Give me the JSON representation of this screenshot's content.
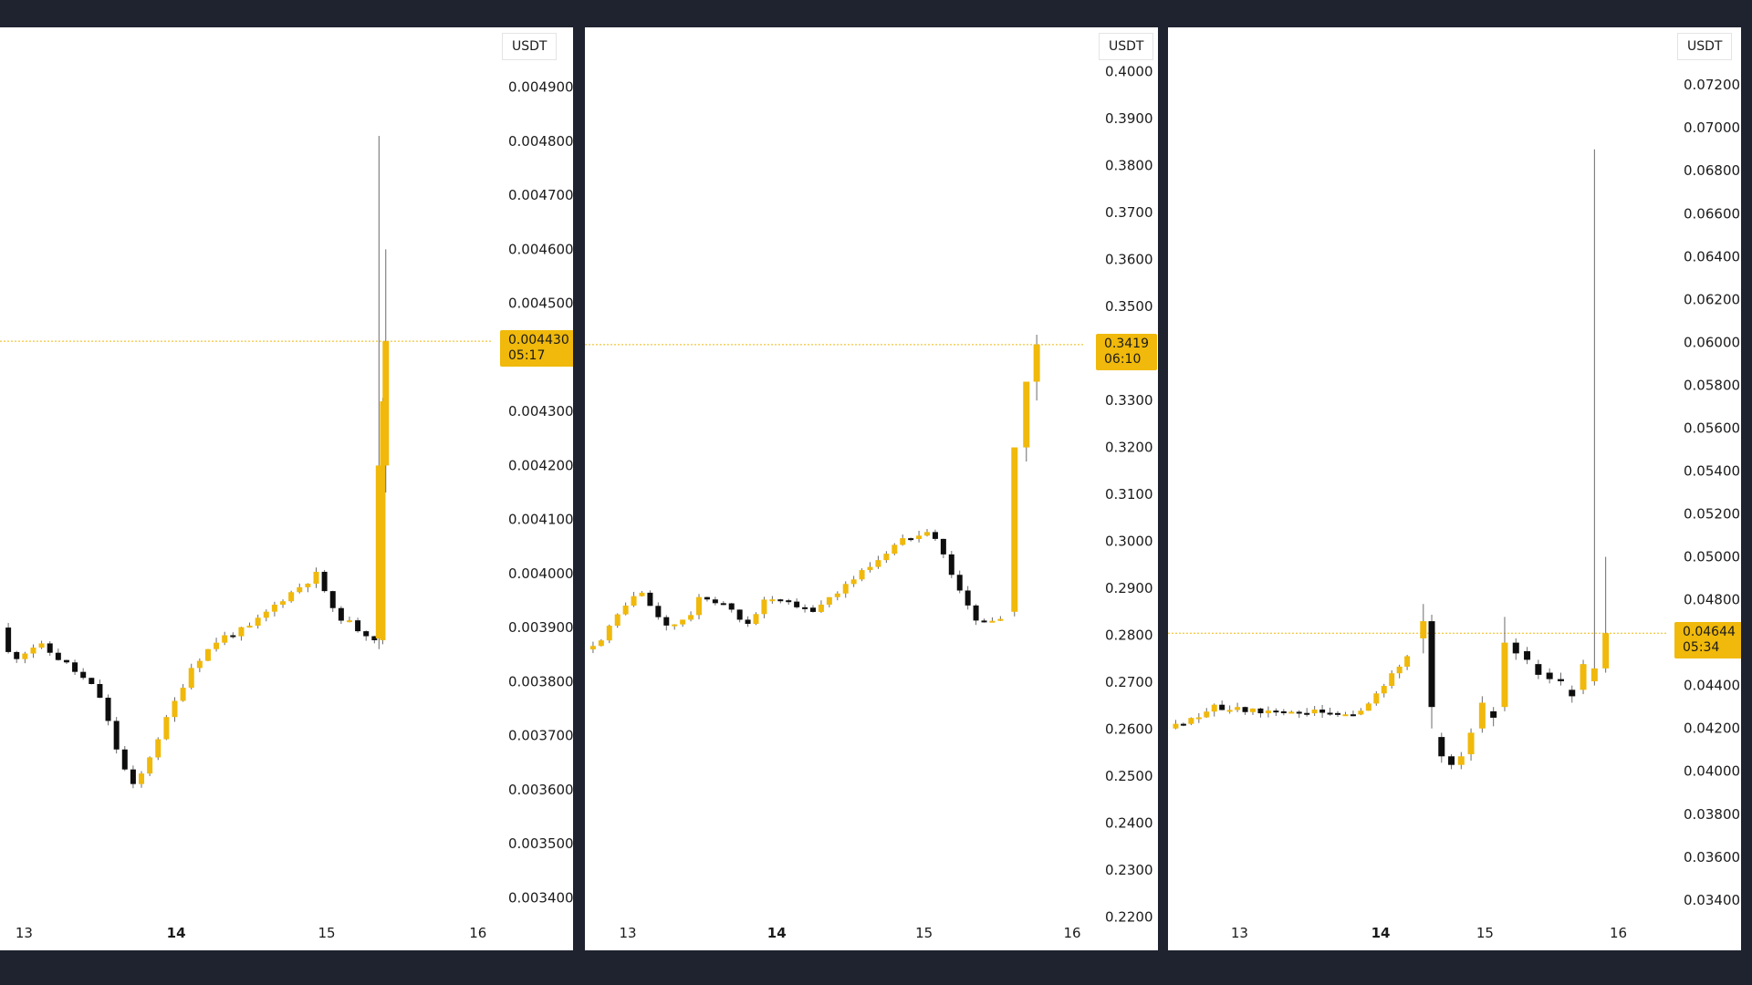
{
  "colors": {
    "up": "#f0b90b",
    "down": "#0e0e0e",
    "wick": "#6b6b6b",
    "price_line": "#f0b90b",
    "background": "#ffffff",
    "frame": "#1f2330"
  },
  "chart_data": [
    {
      "type": "candlestick",
      "currency": "USDT",
      "y_ticks": [
        "0.004900",
        "0.004800",
        "0.004700",
        "0.004600",
        "0.004500",
        "0.004300",
        "0.004200",
        "0.004100",
        "0.004000",
        "0.003900",
        "0.003800",
        "0.003700",
        "0.003600",
        "0.003500",
        "0.003400"
      ],
      "ylim": [
        0.00336,
        0.00494
      ],
      "x_ticks": [
        {
          "label": "13",
          "x": 0.5,
          "bold": false
        },
        {
          "label": "14",
          "x": 1.5,
          "bold": true
        },
        {
          "label": "15",
          "x": 2.5,
          "bold": false
        },
        {
          "label": "16",
          "x": 3.5,
          "bold": false
        }
      ],
      "xlim": [
        0.35,
        4.15
      ],
      "current_price": "0.004430",
      "countdown": "05:17",
      "current_value": 0.00443,
      "key_points": [
        [
          0.35,
          0.0039
        ],
        [
          0.42,
          0.00384
        ],
        [
          0.6,
          0.00387
        ],
        [
          0.8,
          0.00383
        ],
        [
          1.0,
          0.00378
        ],
        [
          1.15,
          0.00365
        ],
        [
          1.24,
          0.0036
        ],
        [
          1.4,
          0.0037
        ],
        [
          1.62,
          0.00383
        ],
        [
          1.8,
          0.00388
        ],
        [
          2.0,
          0.0039
        ],
        [
          2.2,
          0.00395
        ],
        [
          2.45,
          0.004
        ],
        [
          2.55,
          0.00393
        ],
        [
          2.7,
          0.0039
        ],
        [
          2.83,
          0.00388
        ],
        [
          2.86,
          0.0042
        ],
        [
          2.9,
          0.00443
        ]
      ],
      "big_candles": [
        {
          "x": 2.855,
          "open": 0.00388,
          "close": 0.0042,
          "high": 0.00481,
          "low": 0.00386
        },
        {
          "x": 2.9,
          "open": 0.0042,
          "close": 0.00443,
          "high": 0.0046,
          "low": 0.00415
        }
      ]
    },
    {
      "type": "candlestick",
      "currency": "USDT",
      "y_ticks": [
        "0.4000",
        "0.3900",
        "0.3800",
        "0.3700",
        "0.3600",
        "0.3500",
        "0.3300",
        "0.3200",
        "0.3100",
        "0.3000",
        "0.2900",
        "0.2800",
        "0.2700",
        "0.2600",
        "0.2500",
        "0.2400",
        "0.2300",
        "0.2200"
      ],
      "ylim": [
        0.2195,
        0.4013
      ],
      "x_ticks": [
        {
          "label": "13",
          "x": 0.5,
          "bold": false
        },
        {
          "label": "14",
          "x": 1.5,
          "bold": true
        },
        {
          "label": "15",
          "x": 2.5,
          "bold": false
        },
        {
          "label": "16",
          "x": 3.5,
          "bold": false
        }
      ],
      "xlim": [
        0.22,
        4.15
      ],
      "current_price": "0.3419",
      "countdown": "06:10",
      "current_value": 0.3419,
      "key_points": [
        [
          0.22,
          0.277
        ],
        [
          0.35,
          0.28
        ],
        [
          0.5,
          0.287
        ],
        [
          0.6,
          0.289
        ],
        [
          0.75,
          0.282
        ],
        [
          0.9,
          0.283
        ],
        [
          1.0,
          0.288
        ],
        [
          1.15,
          0.287
        ],
        [
          1.3,
          0.282
        ],
        [
          1.45,
          0.288
        ],
        [
          1.65,
          0.286
        ],
        [
          1.75,
          0.285
        ],
        [
          1.95,
          0.29
        ],
        [
          2.15,
          0.295
        ],
        [
          2.35,
          0.3
        ],
        [
          2.55,
          0.303
        ],
        [
          2.7,
          0.293
        ],
        [
          2.85,
          0.283
        ],
        [
          3.0,
          0.283
        ],
        [
          3.05,
          0.284
        ]
      ],
      "big_candles": [
        {
          "x": 3.12,
          "open": 0.285,
          "close": 0.32,
          "high": 0.32,
          "low": 0.284
        },
        {
          "x": 3.2,
          "open": 0.32,
          "close": 0.334,
          "high": 0.334,
          "low": 0.317
        },
        {
          "x": 3.27,
          "open": 0.334,
          "close": 0.3419,
          "high": 0.344,
          "low": 0.33
        }
      ]
    },
    {
      "type": "candlestick",
      "currency": "USDT",
      "y_ticks": [
        "0.07200",
        "0.07000",
        "0.06800",
        "0.06600",
        "0.06400",
        "0.06200",
        "0.06000",
        "0.05800",
        "0.05600",
        "0.05400",
        "0.05200",
        "0.05000",
        "0.04800",
        "0.04400",
        "0.04200",
        "0.04000",
        "0.03800",
        "0.03600",
        "0.03400"
      ],
      "ylim": [
        0.0331,
        0.0729
      ],
      "x_ticks": [
        {
          "label": "13",
          "x": 0.5,
          "bold": false
        },
        {
          "label": "14",
          "x": 1.5,
          "bold": true
        },
        {
          "label": "15",
          "x": 2.25,
          "bold": false
        },
        {
          "label": "16",
          "x": 3.2,
          "bold": false
        }
      ],
      "xlim": [
        0.0,
        4.15
      ],
      "current_price": "0.04644",
      "countdown": "05:34",
      "current_value": 0.04644,
      "key_points": [
        [
          0.0,
          0.042
        ],
        [
          0.15,
          0.0425
        ],
        [
          0.35,
          0.043
        ],
        [
          0.6,
          0.0428
        ],
        [
          0.9,
          0.0428
        ],
        [
          1.1,
          0.0427
        ],
        [
          1.3,
          0.0426
        ],
        [
          1.45,
          0.0432
        ],
        [
          1.6,
          0.0445
        ],
        [
          1.72,
          0.0455
        ]
      ],
      "big_candles": [
        {
          "x": 1.82,
          "open": 0.0462,
          "close": 0.047,
          "high": 0.0478,
          "low": 0.0455
        },
        {
          "x": 1.88,
          "open": 0.047,
          "close": 0.043,
          "high": 0.0473,
          "low": 0.042
        },
        {
          "x": 1.95,
          "open": 0.0416,
          "close": 0.0407,
          "high": 0.0418,
          "low": 0.0404
        },
        {
          "x": 2.02,
          "open": 0.0407,
          "close": 0.0403,
          "high": 0.0408,
          "low": 0.0401
        },
        {
          "x": 2.09,
          "open": 0.0403,
          "close": 0.0407,
          "high": 0.0409,
          "low": 0.0401
        },
        {
          "x": 2.16,
          "open": 0.0408,
          "close": 0.0418,
          "high": 0.042,
          "low": 0.0405
        },
        {
          "x": 2.24,
          "open": 0.042,
          "close": 0.0432,
          "high": 0.0435,
          "low": 0.0418
        },
        {
          "x": 2.32,
          "open": 0.0428,
          "close": 0.0425,
          "high": 0.043,
          "low": 0.0421
        },
        {
          "x": 2.4,
          "open": 0.043,
          "close": 0.046,
          "high": 0.0472,
          "low": 0.0428
        },
        {
          "x": 2.48,
          "open": 0.046,
          "close": 0.0455,
          "high": 0.0462,
          "low": 0.0452
        },
        {
          "x": 2.56,
          "open": 0.0456,
          "close": 0.0452,
          "high": 0.0458,
          "low": 0.045
        },
        {
          "x": 2.64,
          "open": 0.045,
          "close": 0.0445,
          "high": 0.0452,
          "low": 0.0443
        },
        {
          "x": 2.72,
          "open": 0.0446,
          "close": 0.0443,
          "high": 0.0448,
          "low": 0.0441
        },
        {
          "x": 2.8,
          "open": 0.0443,
          "close": 0.0442,
          "high": 0.0446,
          "low": 0.044
        },
        {
          "x": 2.88,
          "open": 0.0438,
          "close": 0.0435,
          "high": 0.044,
          "low": 0.0432
        },
        {
          "x": 2.96,
          "open": 0.0438,
          "close": 0.045,
          "high": 0.0452,
          "low": 0.0436
        },
        {
          "x": 3.04,
          "open": 0.0442,
          "close": 0.0448,
          "high": 0.069,
          "low": 0.044
        },
        {
          "x": 3.12,
          "open": 0.0448,
          "close": 0.04644,
          "high": 0.05,
          "low": 0.0446
        }
      ]
    }
  ]
}
